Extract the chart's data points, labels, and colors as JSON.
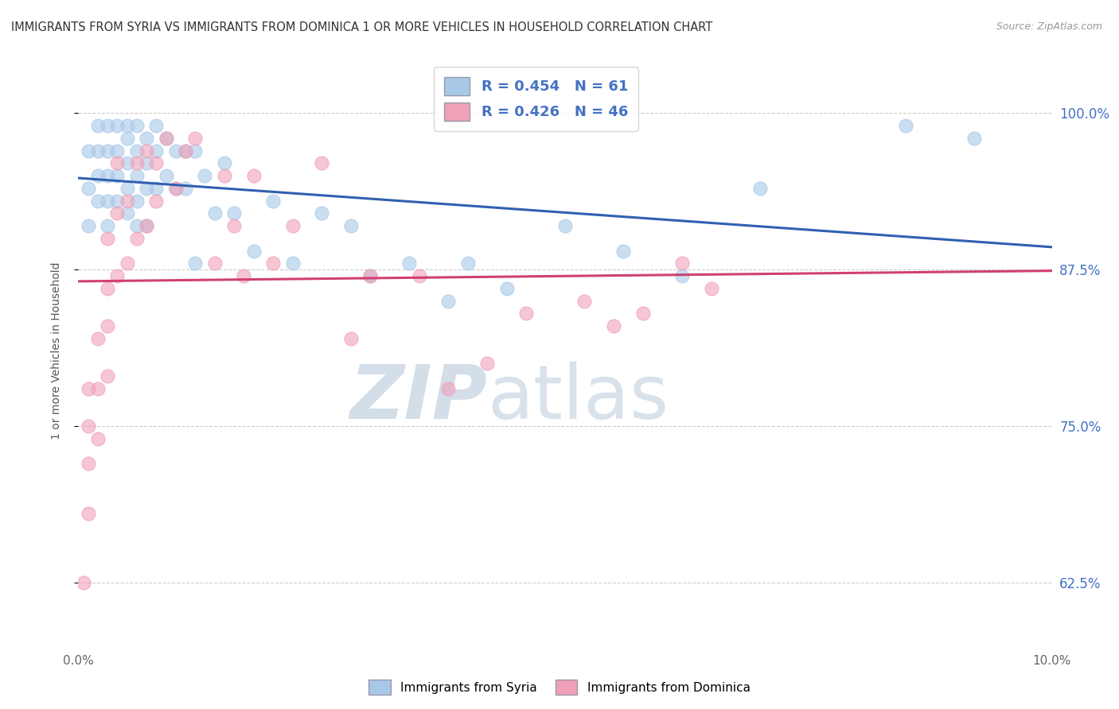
{
  "title": "IMMIGRANTS FROM SYRIA VS IMMIGRANTS FROM DOMINICA 1 OR MORE VEHICLES IN HOUSEHOLD CORRELATION CHART",
  "source": "Source: ZipAtlas.com",
  "ylabel": "1 or more Vehicles in Household",
  "ytick_labels": [
    "62.5%",
    "75.0%",
    "87.5%",
    "100.0%"
  ],
  "ytick_values": [
    0.625,
    0.75,
    0.875,
    1.0
  ],
  "xlim": [
    0.0,
    0.1
  ],
  "ylim": [
    0.575,
    1.045
  ],
  "legend_blue_label": "R = 0.454   N = 61",
  "legend_pink_label": "R = 0.426   N = 46",
  "bottom_legend_blue": "Immigrants from Syria",
  "bottom_legend_pink": "Immigrants from Dominica",
  "blue_color": "#A8C8E8",
  "pink_color": "#F0A0B8",
  "blue_line_color": "#3060B0",
  "pink_line_color": "#D04070",
  "watermark_zip": "ZIP",
  "watermark_atlas": "atlas",
  "grid_color": "#cccccc",
  "syria_x": [
    0.001,
    0.001,
    0.001,
    0.002,
    0.002,
    0.002,
    0.002,
    0.003,
    0.003,
    0.003,
    0.003,
    0.003,
    0.004,
    0.004,
    0.004,
    0.004,
    0.005,
    0.005,
    0.005,
    0.005,
    0.005,
    0.006,
    0.006,
    0.006,
    0.006,
    0.006,
    0.007,
    0.007,
    0.007,
    0.007,
    0.008,
    0.008,
    0.008,
    0.009,
    0.009,
    0.01,
    0.01,
    0.011,
    0.011,
    0.012,
    0.012,
    0.013,
    0.014,
    0.015,
    0.016,
    0.018,
    0.02,
    0.022,
    0.025,
    0.028,
    0.03,
    0.034,
    0.038,
    0.04,
    0.044,
    0.05,
    0.056,
    0.062,
    0.07,
    0.085,
    0.092
  ],
  "syria_y": [
    0.97,
    0.94,
    0.91,
    0.99,
    0.97,
    0.95,
    0.93,
    0.99,
    0.97,
    0.95,
    0.93,
    0.91,
    0.99,
    0.97,
    0.95,
    0.93,
    0.99,
    0.98,
    0.96,
    0.94,
    0.92,
    0.99,
    0.97,
    0.95,
    0.93,
    0.91,
    0.98,
    0.96,
    0.94,
    0.91,
    0.99,
    0.97,
    0.94,
    0.98,
    0.95,
    0.97,
    0.94,
    0.97,
    0.94,
    0.97,
    0.88,
    0.95,
    0.92,
    0.96,
    0.92,
    0.89,
    0.93,
    0.88,
    0.92,
    0.91,
    0.87,
    0.88,
    0.85,
    0.88,
    0.86,
    0.91,
    0.89,
    0.87,
    0.94,
    0.99,
    0.98
  ],
  "dominica_x": [
    0.0005,
    0.001,
    0.001,
    0.001,
    0.001,
    0.002,
    0.002,
    0.002,
    0.003,
    0.003,
    0.003,
    0.003,
    0.004,
    0.004,
    0.004,
    0.005,
    0.005,
    0.006,
    0.006,
    0.007,
    0.007,
    0.008,
    0.008,
    0.009,
    0.01,
    0.011,
    0.012,
    0.014,
    0.015,
    0.016,
    0.017,
    0.018,
    0.02,
    0.022,
    0.025,
    0.028,
    0.03,
    0.035,
    0.038,
    0.042,
    0.046,
    0.052,
    0.055,
    0.058,
    0.062,
    0.065
  ],
  "dominica_y": [
    0.625,
    0.68,
    0.72,
    0.75,
    0.78,
    0.74,
    0.78,
    0.82,
    0.79,
    0.83,
    0.86,
    0.9,
    0.87,
    0.92,
    0.96,
    0.88,
    0.93,
    0.9,
    0.96,
    0.91,
    0.97,
    0.93,
    0.96,
    0.98,
    0.94,
    0.97,
    0.98,
    0.88,
    0.95,
    0.91,
    0.87,
    0.95,
    0.88,
    0.91,
    0.96,
    0.82,
    0.87,
    0.87,
    0.78,
    0.8,
    0.84,
    0.85,
    0.83,
    0.84,
    0.88,
    0.86
  ]
}
